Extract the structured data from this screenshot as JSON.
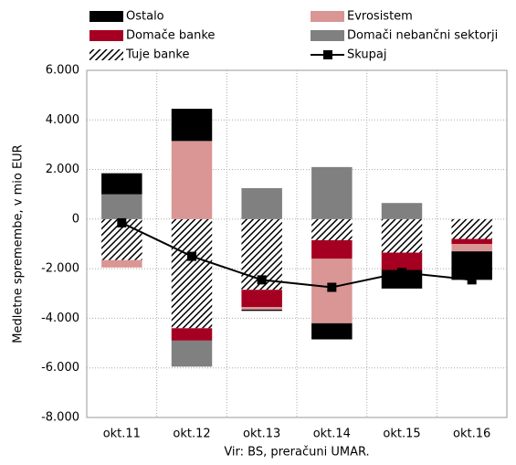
{
  "chart_data": {
    "type": "stacked_bar_line",
    "y_axis_label": "Medletne spremembe, v mio EUR",
    "source": "Vir: BS, preračuni UMAR.",
    "categories": [
      "okt.11",
      "okt.12",
      "okt.13",
      "okt.14",
      "okt.15",
      "okt.16"
    ],
    "series": [
      {
        "name": "Ostalo",
        "color": "#000000",
        "values": [
          850,
          1300,
          -50,
          -650,
          -750,
          -1150
        ]
      },
      {
        "name": "Evrosistem",
        "color": "#d99694",
        "values": [
          -300,
          3150,
          -100,
          -2600,
          0,
          -300
        ]
      },
      {
        "name": "Domače banke",
        "color": "#a50021",
        "values": [
          0,
          -500,
          -700,
          -750,
          -700,
          -200
        ]
      },
      {
        "name": "Domači nebančni sektorji",
        "color": "#808080",
        "values": [
          1000,
          -1050,
          1250,
          2100,
          650,
          0
        ]
      },
      {
        "name": "Tuje banke",
        "color": "#000000",
        "hatch": true,
        "values": [
          -1650,
          -4400,
          -2850,
          -850,
          -1350,
          -800
        ]
      },
      {
        "name": "Skupaj",
        "color": "#000000",
        "kind": "line",
        "values": [
          -150,
          -1500,
          -2450,
          -2750,
          -2150,
          -2450
        ]
      }
    ],
    "stack_order": [
      "Tuje banke",
      "Domače banke",
      "Evrosistem",
      "Domači nebančni sektorji",
      "Ostalo"
    ],
    "ylim": [
      -8000,
      6000
    ],
    "yticks": [
      {
        "value": -8000,
        "label": "-8.000"
      },
      {
        "value": -6000,
        "label": "-6.000"
      },
      {
        "value": -4000,
        "label": "-4.000"
      },
      {
        "value": -2000,
        "label": "-2.000"
      },
      0,
      {
        "value": 2000,
        "label": "2.000"
      },
      {
        "value": 4000,
        "label": "4.000"
      },
      {
        "value": 6000,
        "label": "6.000"
      }
    ],
    "grid": true
  }
}
